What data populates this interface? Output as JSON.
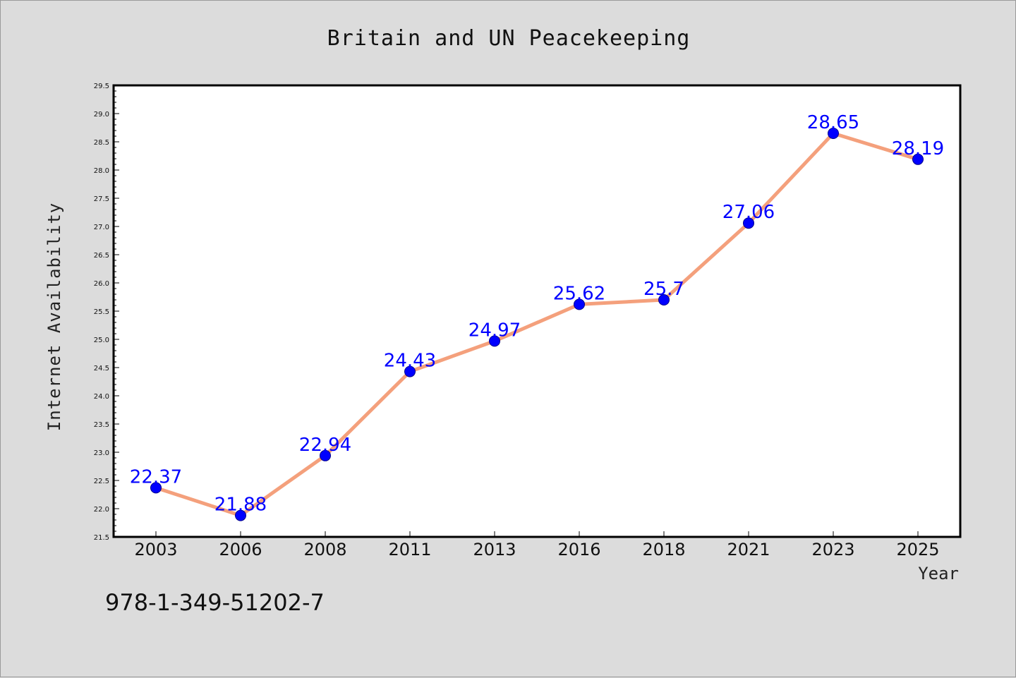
{
  "chart_data": {
    "type": "line",
    "title": "Britain and UN Peacekeeping",
    "xlabel": "Year",
    "ylabel": "Internet Availability",
    "categories": [
      "2003",
      "2006",
      "2008",
      "2011",
      "2013",
      "2016",
      "2018",
      "2021",
      "2023",
      "2025"
    ],
    "series": [
      {
        "values": [
          22.37,
          21.88,
          22.94,
          24.43,
          24.97,
          25.62,
          25.7,
          27.06,
          28.65,
          28.19
        ],
        "data_labels": [
          "22.37",
          "21.88",
          "22.94",
          "24.43",
          "24.97",
          "25.62",
          "25.7",
          "27.06",
          "28.65",
          "28.19"
        ]
      }
    ],
    "ylim": [
      21.5,
      29.5
    ],
    "yticks": [
      "21.5",
      "22.0",
      "22.5",
      "23.0",
      "23.5",
      "24.0",
      "24.5",
      "25.0",
      "25.5",
      "26.0",
      "26.5",
      "27.0",
      "27.5",
      "28.0",
      "28.5",
      "29.0",
      "29.5"
    ],
    "grid": false,
    "legend": "none",
    "colors": {
      "line": "#f4a07c",
      "marker": "#0000ff",
      "data_label": "#0000ff",
      "plot_background": "#ffffff",
      "page_background": "#dcdcdc"
    }
  },
  "footer": {
    "isbn": "978-1-349-51202-7"
  }
}
